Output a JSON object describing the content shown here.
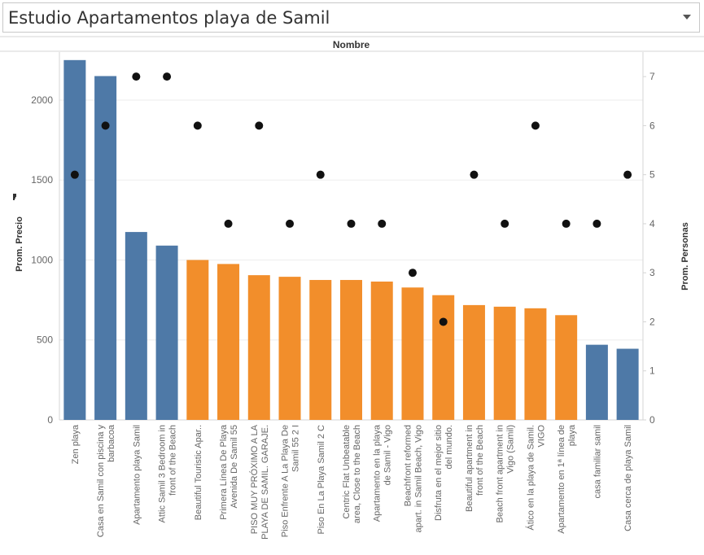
{
  "dashboard": {
    "title": "Estudio Apartamentos playa de Samil"
  },
  "chart_data": {
    "type": "bar",
    "column_header": "Nombre",
    "ylabel": "Prom. Precio",
    "y2label": "Prom. Personas",
    "ylim": [
      0,
      2300
    ],
    "y2lim": [
      0,
      7.5
    ],
    "yticks": [
      0,
      500,
      1000,
      1500,
      2000
    ],
    "y2ticks": [
      0,
      1,
      2,
      3,
      4,
      5,
      6,
      7
    ],
    "colors": {
      "blue": "#4e79a7",
      "orange": "#f28e2b",
      "dot": "#111111",
      "grid": "#eeeeee",
      "axis": "#d4d4d4",
      "text": "#666666"
    },
    "categories": [
      "Zen playa",
      "Casa en Samil con piscina y barbacoa",
      "Apartamento playa Samil",
      "Attic Samil 3 Bedroom in front of the Beach",
      "Beautiful Touristic Apar..",
      "Primera Línea De Playa Avenida De Samil 55",
      "PISO MUY PRÓXIMO A LA PLAYA DE SAMIL. GARAJE.",
      "Piso Enfrente A La Playa De Samil 55 2 I",
      "Piso En La Playa Samil 2 C",
      "Centric Flat Unbeatable area, Close to the Beach",
      "Apartamento en la playa de Samil - Vigo",
      "Beachfront reformed apart. in Samil Beach, Vigo",
      "Disfruta en el mejor sitio del mundo.",
      "Beautiful apartment in front of the Beach",
      "Beach front apartment in Vigo (Samil)",
      "Ático en la playa de Samil. VIGO",
      "Apartamento en 1ª línea de playa",
      "casa familiar samil",
      "Casa cerca de playa Samil"
    ],
    "label_lines": [
      [
        "Zen playa"
      ],
      [
        "Casa en Samil con piscina y",
        "barbacoa"
      ],
      [
        "Apartamento playa Samil"
      ],
      [
        "Attic Samil 3 Bedroom in",
        "front of the Beach"
      ],
      [
        "Beautiful Touristic Apar.."
      ],
      [
        "Primera Línea De Playa",
        "Avenida De Samil 55"
      ],
      [
        "PISO MUY PRÓXIMO A LA",
        "PLAYA DE SAMIL. GARAJE."
      ],
      [
        "Piso Enfrente A La Playa De",
        "Samil 55 2 I"
      ],
      [
        "Piso En La Playa Samil 2 C"
      ],
      [
        "Centric Flat Unbeatable",
        "area, Close to the Beach"
      ],
      [
        "Apartamento en la playa",
        "de Samil - Vigo"
      ],
      [
        "Beachfront reformed",
        "apart. in Samil Beach, Vigo"
      ],
      [
        "Disfruta en el mejor sitio",
        "del mundo."
      ],
      [
        "Beautiful apartment in",
        "front of the Beach"
      ],
      [
        "Beach front apartment in",
        "Vigo (Samil)"
      ],
      [
        "Ático en la playa de Samil.",
        "VIGO"
      ],
      [
        "Apartamento en 1ª línea de",
        "playa"
      ],
      [
        "casa familiar samil"
      ],
      [
        "Casa cerca de playa Samil"
      ]
    ],
    "series": [
      {
        "axis": "left",
        "kind": "bar",
        "values": [
          2250,
          2150,
          1175,
          1090,
          1000,
          975,
          905,
          895,
          875,
          875,
          865,
          828,
          780,
          718,
          708,
          698,
          655,
          470,
          445
        ],
        "color_groups": [
          "blue",
          "blue",
          "blue",
          "blue",
          "orange",
          "orange",
          "orange",
          "orange",
          "orange",
          "orange",
          "orange",
          "orange",
          "orange",
          "orange",
          "orange",
          "orange",
          "orange",
          "blue",
          "blue"
        ]
      },
      {
        "axis": "right",
        "kind": "dot",
        "values": [
          5,
          6,
          7,
          7,
          6,
          4,
          6,
          4,
          5,
          4,
          4,
          3,
          2,
          5,
          4,
          6,
          4,
          4,
          5
        ]
      }
    ],
    "grid": true,
    "legend": "none"
  }
}
